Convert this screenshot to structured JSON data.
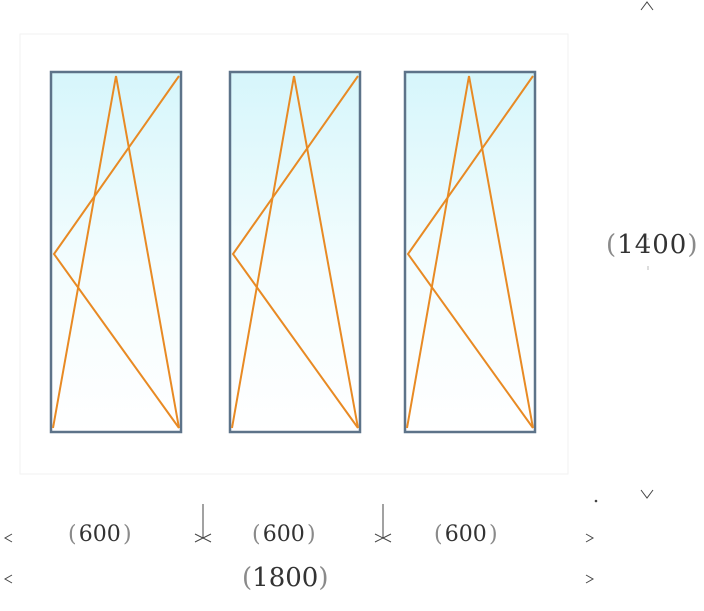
{
  "dimensions": {
    "height": "1400",
    "section_widths": [
      "600",
      "600",
      "600"
    ],
    "total_width": "1800"
  },
  "colors": {
    "frame": "#5d7389",
    "sash_line": "#e88a24",
    "glass_top": "#d9f6fb",
    "glass_bottom": "#ffffff",
    "dimension_text": "#333333"
  },
  "sashes": [
    {
      "name": "left-sash",
      "opening": "tilt-and-turn"
    },
    {
      "name": "middle-sash",
      "opening": "tilt-and-turn"
    },
    {
      "name": "right-sash",
      "opening": "tilt-and-turn"
    }
  ]
}
